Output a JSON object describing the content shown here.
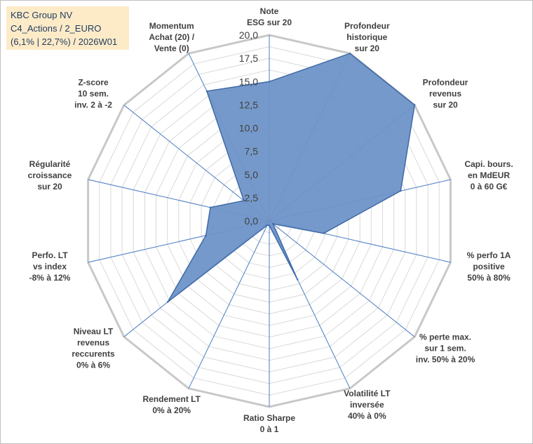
{
  "header": {
    "line1": "KBC Group NV",
    "line2": "C4_Actions / 2_EURO",
    "line3": "(6,1% | 22,7%) / 2026W01"
  },
  "chart_data": {
    "type": "radar",
    "rmin": 0,
    "rmax": 20,
    "ticks": [
      "0,0",
      "2,5",
      "5,0",
      "7,5",
      "10,0",
      "12,5",
      "15,0",
      "17,5",
      "20,0"
    ],
    "tick_values": [
      0,
      2.5,
      5,
      7.5,
      10,
      12.5,
      15,
      17.5,
      20
    ],
    "grid_levels": [
      1.25,
      2.5,
      3.75,
      5,
      6.25,
      7.5,
      8.75,
      10,
      11.25,
      12.5,
      13.75,
      15,
      16.25,
      17.5,
      18.75,
      20
    ],
    "axes": [
      {
        "label": [
          "Note",
          "ESG sur 20"
        ],
        "value": 15.0
      },
      {
        "label": [
          "Profondeur",
          "historique",
          "sur 20"
        ],
        "value": 20.0
      },
      {
        "label": [
          "Profondeur",
          "revenus",
          "sur 20"
        ],
        "value": 20.0
      },
      {
        "label": [
          "Capi. bours.",
          "en MdEUR",
          "0 à 60 G€"
        ],
        "value": 14.5
      },
      {
        "label": [
          "% perfo 1A",
          "positive",
          "50% à 80%"
        ],
        "value": 6.0
      },
      {
        "label": [
          "% perte max.",
          "sur 1 sem.",
          "inv. 50% à 20%"
        ],
        "value": 0.5
      },
      {
        "label": [
          "Volatilité LT",
          "inversée",
          "40% à 0%"
        ],
        "value": 7.0
      },
      {
        "label": [
          "Ratio Sharpe",
          "0 à 1"
        ],
        "value": 0.5
      },
      {
        "label": [
          "Rendement LT",
          "0% à 20%"
        ],
        "value": 0.5
      },
      {
        "label": [
          "Niveau LT",
          "revenus",
          "reccurents",
          "0% à 6%"
        ],
        "value": 14.0
      },
      {
        "label": [
          "Perfo. LT",
          "vs index",
          "-8% à 12%"
        ],
        "value": 7.0
      },
      {
        "label": [
          "Régularité",
          "croissance",
          "sur 20"
        ],
        "value": 6.5
      },
      {
        "label": [
          "Z-score",
          "10 sem.",
          "inv. 2 à -2"
        ],
        "value": 3.5
      },
      {
        "label": [
          "Momentum",
          "Achat (20) /",
          "Vente (0)"
        ],
        "value": 15.5
      }
    ],
    "colors": {
      "fill": "#6f94c8",
      "stroke": "#3d6aa8",
      "outer_grid": "#c8c8c8",
      "inner_grid": "#d9d9d9",
      "spoke": "#4a7cc4"
    }
  }
}
